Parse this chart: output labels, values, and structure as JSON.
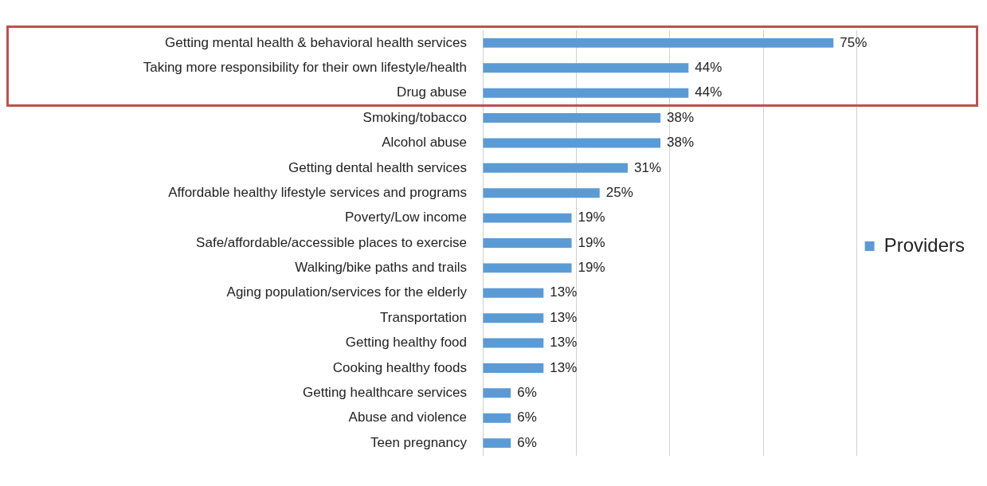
{
  "chart_data": {
    "type": "bar",
    "orientation": "horizontal",
    "categories": [
      "Getting mental health & behavioral health services",
      "Taking more responsibility for their own lifestyle/health",
      "Drug abuse",
      "Smoking/tobacco",
      "Alcohol abuse",
      "Getting dental health services",
      "Affordable healthy lifestyle services and programs",
      "Poverty/Low income",
      "Safe/affordable/accessible places to exercise",
      "Walking/bike paths and trails",
      "Aging population/services for the elderly",
      "Transportation",
      "Getting healthy food",
      "Cooking healthy foods",
      "Getting healthcare services",
      "Abuse and violence",
      "Teen pregnancy"
    ],
    "series": [
      {
        "name": "Providers",
        "color": "#5b9bd5",
        "values": [
          75,
          44,
          44,
          38,
          38,
          31,
          25,
          19,
          19,
          19,
          13,
          13,
          13,
          13,
          6,
          6,
          6
        ],
        "value_labels": [
          "75%",
          "44%",
          "44%",
          "38%",
          "38%",
          "31%",
          "25%",
          "19%",
          "19%",
          "19%",
          "13%",
          "13%",
          "13%",
          "13%",
          "6%",
          "6%",
          "6%"
        ]
      }
    ],
    "xlim": [
      0,
      80
    ],
    "xticks": [
      {
        "value": 0,
        "label": null
      },
      {
        "value": 20,
        "label": null
      },
      {
        "value": 40,
        "label": null
      },
      {
        "value": 60,
        "label": null
      },
      {
        "value": 80,
        "label": null
      }
    ],
    "tick_labels": "y",
    "grid": "x",
    "legend": "right"
  }
}
